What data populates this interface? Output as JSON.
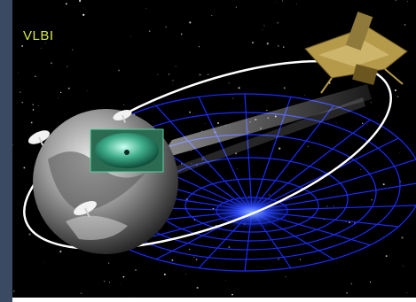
{
  "caption": {
    "text": "VLBI"
  },
  "colors": {
    "background": "#000000",
    "side_bar": "#3a4a63",
    "caption": "#d6e84a",
    "grid": "#1a2bff",
    "orbit": "#ffffff",
    "earth": "#9a9a9a",
    "inset": "#3fae8a",
    "satellite": "#b59a4a"
  },
  "icons": [
    "satellite-icon",
    "dish-antenna-icon",
    "earth-icon",
    "radio-beam-icon"
  ]
}
